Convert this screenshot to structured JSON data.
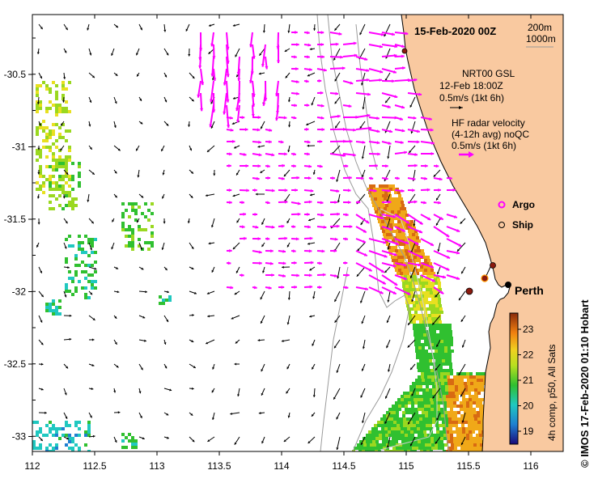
{
  "title": "15-Feb-2020 00Z",
  "bathymetry_legend": {
    "contour1": "200m",
    "contour2": "1000m"
  },
  "model_info": {
    "line1": "NRT00 GSL",
    "line2": "12-Feb 18:00Z",
    "line3": "0.5m/s (1kt 6h)"
  },
  "radar_info": {
    "line1": "HF radar velocity",
    "line2": "(4-12h avg) noQC",
    "line3": "0.5m/s (1kt 6h)"
  },
  "point_legend": {
    "argo": "Argo",
    "ship": "Ship"
  },
  "city": "Perth",
  "credit": "© IMOS 17-Feb-2020 01:10 Hobart",
  "colorbar": {
    "label": "4h comp, p50, All Sats",
    "ticks": [
      "19",
      "20",
      "21",
      "22",
      "23"
    ]
  },
  "axes": {
    "x_ticks": [
      "112",
      "112.5",
      "113",
      "113.5",
      "114",
      "114.5",
      "115",
      "115.5",
      "116"
    ],
    "y_ticks": [
      "-30.5",
      "-31",
      "-31.5",
      "-32",
      "-32.5",
      "-33"
    ]
  },
  "colors": {
    "land": "#f9c9a0",
    "radar_arrow": "#ff00ff",
    "model_arrow": "#000000",
    "contour": "#999999",
    "ship_marker": "#8b1a0e"
  }
}
